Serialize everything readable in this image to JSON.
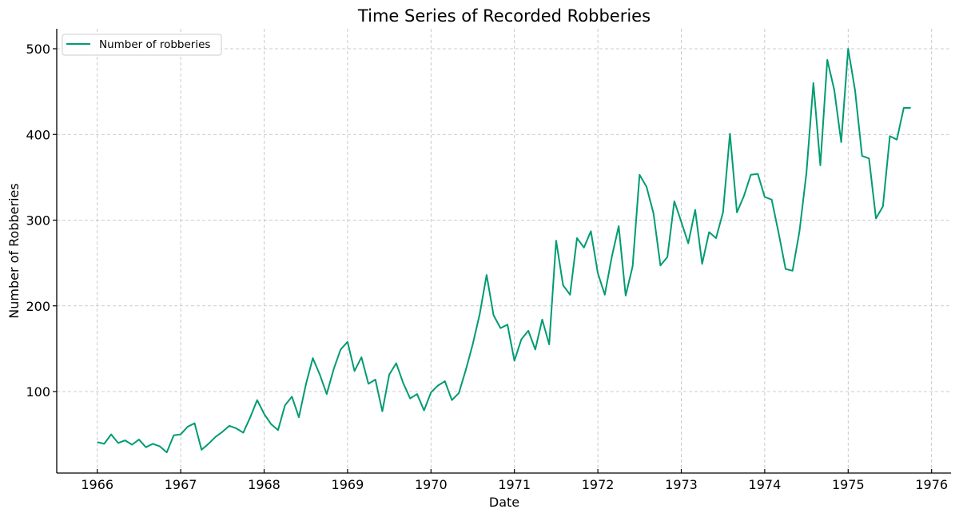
{
  "chart_data": {
    "type": "line",
    "title": "Time Series of Recorded Robberies",
    "xlabel": "Date",
    "ylabel": "Number of Robberies",
    "xlim": [
      1965.5,
      1976.25
    ],
    "ylim": [
      9,
      524
    ],
    "x_ticks": [
      "1966",
      "1967",
      "1968",
      "1969",
      "1970",
      "1971",
      "1972",
      "1973",
      "1974",
      "1975",
      "1976"
    ],
    "y_ticks": [
      100,
      200,
      300,
      400,
      500
    ],
    "grid": true,
    "legend_position": "upper left",
    "series": [
      {
        "name": "Number of robberies",
        "color": "#009B72",
        "start": "1966-01",
        "frequency": "monthly",
        "values": [
          41,
          39,
          50,
          40,
          43,
          38,
          44,
          35,
          39,
          36,
          29,
          49,
          50,
          59,
          63,
          32,
          39,
          47,
          53,
          60,
          57,
          52,
          70,
          90,
          74,
          62,
          55,
          84,
          94,
          70,
          108,
          139,
          120,
          97,
          126,
          149,
          158,
          124,
          140,
          109,
          114,
          77,
          120,
          133,
          110,
          92,
          97,
          78,
          99,
          107,
          112,
          90,
          98,
          125,
          155,
          190,
          236,
          189,
          174,
          178,
          136,
          161,
          171,
          149,
          184,
          155,
          276,
          224,
          213,
          279,
          268,
          287,
          238,
          213,
          257,
          293,
          212,
          246,
          353,
          339,
          308,
          247,
          257,
          322,
          298,
          273,
          312,
          249,
          286,
          279,
          309,
          401,
          309,
          328,
          353,
          354,
          327,
          324,
          285,
          243,
          241,
          287,
          355,
          460,
          364,
          487,
          452,
          391,
          500,
          451,
          375,
          372,
          302,
          316,
          398,
          394,
          431,
          431
        ]
      }
    ]
  }
}
